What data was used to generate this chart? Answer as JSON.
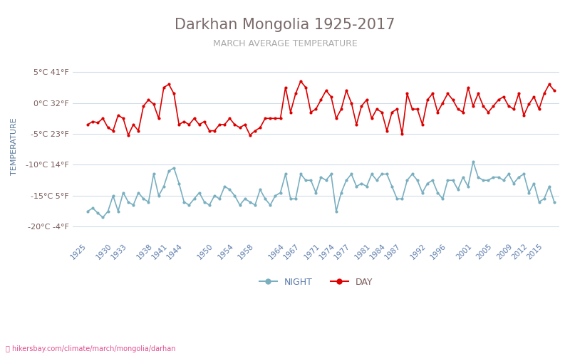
{
  "title": "Darkhan Mongolia 1925-2017",
  "subtitle": "MARCH AVERAGE TEMPERATURE",
  "ylabel": "TEMPERATURE",
  "background_color": "#ffffff",
  "title_color": "#7a6a6a",
  "subtitle_color": "#8a8a8a",
  "ylabel_color": "#5a7a9a",
  "grid_color": "#d0dce8",
  "footer_text": "hikersbay.com/climate/march/mongolia/darhan",
  "yticks_celsius": [
    5,
    0,
    -5,
    -10,
    -15,
    -20
  ],
  "yticks_labels": [
    "5°C 41°F",
    "0°C 32°F",
    "-5°C 23°F",
    "-10°C 14°F",
    "-15°C 5°F",
    "-20°C -4°F"
  ],
  "xtick_years": [
    1925,
    1930,
    1933,
    1938,
    1941,
    1944,
    1950,
    1954,
    1958,
    1964,
    1967,
    1971,
    1974,
    1977,
    1981,
    1984,
    1987,
    1992,
    1996,
    2001,
    2005,
    2009,
    2012,
    2015
  ],
  "day_color": "#dd0000",
  "night_color": "#7aafc0",
  "day_years": [
    1925,
    1926,
    1927,
    1928,
    1929,
    1930,
    1931,
    1932,
    1933,
    1934,
    1935,
    1936,
    1937,
    1938,
    1939,
    1940,
    1941,
    1942,
    1943,
    1944,
    1945,
    1946,
    1947,
    1948,
    1949,
    1950,
    1951,
    1952,
    1953,
    1954,
    1955,
    1956,
    1957,
    1958,
    1959,
    1960,
    1961,
    1962,
    1963,
    1964,
    1965,
    1966,
    1967,
    1968,
    1969,
    1970,
    1971,
    1972,
    1973,
    1974,
    1975,
    1976,
    1977,
    1978,
    1979,
    1980,
    1981,
    1982,
    1983,
    1984,
    1985,
    1986,
    1987,
    1988,
    1989,
    1990,
    1991,
    1992,
    1993,
    1994,
    1995,
    1996,
    1997,
    1998,
    1999,
    2000,
    2001,
    2002,
    2003,
    2004,
    2005,
    2006,
    2007,
    2008,
    2009,
    2010,
    2011,
    2012,
    2013,
    2014,
    2015,
    2016,
    2017
  ],
  "day_values": [
    -3.5,
    -3.0,
    -3.2,
    -2.5,
    -4.0,
    -4.5,
    -2.0,
    -2.5,
    -5.2,
    -3.5,
    -4.5,
    -0.5,
    0.5,
    -0.2,
    -2.5,
    2.5,
    3.0,
    1.5,
    -3.5,
    -3.0,
    -3.5,
    -2.5,
    -3.5,
    -3.0,
    -4.5,
    -4.5,
    -3.5,
    -3.5,
    -2.5,
    -3.5,
    -4.0,
    -3.5,
    -5.2,
    -4.5,
    -4.0,
    -2.5,
    -2.5,
    -2.5,
    -2.5,
    2.5,
    -1.5,
    1.5,
    3.5,
    2.5,
    -1.5,
    -1.0,
    0.5,
    2.0,
    1.0,
    -2.5,
    -1.0,
    2.0,
    0.0,
    -3.5,
    -0.5,
    0.5,
    -2.5,
    -1.0,
    -1.5,
    -4.5,
    -1.5,
    -1.0,
    -5.0,
    1.5,
    -1.0,
    -1.0,
    -3.5,
    0.5,
    1.5,
    -1.5,
    0.0,
    1.5,
    0.5,
    -1.0,
    -1.5,
    2.5,
    -0.5,
    1.5,
    -0.5,
    -1.5,
    -0.5,
    0.5,
    1.0,
    -0.5,
    -1.0,
    1.5,
    -2.0,
    -0.2,
    1.0,
    -1.0,
    1.5,
    3.0,
    2.0
  ],
  "night_years": [
    1925,
    1926,
    1927,
    1928,
    1929,
    1930,
    1931,
    1932,
    1933,
    1934,
    1935,
    1936,
    1937,
    1938,
    1939,
    1940,
    1941,
    1942,
    1943,
    1944,
    1945,
    1946,
    1947,
    1948,
    1949,
    1950,
    1951,
    1952,
    1953,
    1954,
    1955,
    1956,
    1957,
    1958,
    1959,
    1960,
    1961,
    1962,
    1963,
    1964,
    1965,
    1966,
    1967,
    1968,
    1969,
    1970,
    1971,
    1972,
    1973,
    1974,
    1975,
    1976,
    1977,
    1978,
    1979,
    1980,
    1981,
    1982,
    1983,
    1984,
    1985,
    1986,
    1987,
    1988,
    1989,
    1990,
    1991,
    1992,
    1993,
    1994,
    1995,
    1996,
    1997,
    1998,
    1999,
    2000,
    2001,
    2002,
    2003,
    2004,
    2005,
    2006,
    2007,
    2008,
    2009,
    2010,
    2011,
    2012,
    2013,
    2014,
    2015,
    2016,
    2017
  ],
  "night_values": [
    -17.5,
    -17.0,
    -17.8,
    -18.5,
    -17.5,
    -15.0,
    -17.5,
    -14.5,
    -16.0,
    -16.5,
    -14.5,
    -15.5,
    -16.0,
    -11.5,
    -15.0,
    -13.5,
    -11.0,
    -10.5,
    -13.0,
    -16.0,
    -16.5,
    -15.5,
    -14.5,
    -16.0,
    -16.5,
    -15.0,
    -15.5,
    -13.5,
    -14.0,
    -15.0,
    -16.5,
    -15.5,
    -16.0,
    -16.5,
    -14.0,
    -15.5,
    -16.5,
    -15.0,
    -14.5,
    -11.5,
    -15.5,
    -15.5,
    -11.5,
    -12.5,
    -12.5,
    -14.5,
    -12.0,
    -12.5,
    -11.5,
    -17.5,
    -14.5,
    -12.5,
    -11.5,
    -13.5,
    -13.0,
    -13.5,
    -11.5,
    -12.5,
    -11.5,
    -11.5,
    -13.5,
    -15.5,
    -15.5,
    -12.5,
    -11.5,
    -12.5,
    -14.5,
    -13.0,
    -12.5,
    -14.5,
    -15.5,
    -12.5,
    -12.5,
    -14.0,
    -12.0,
    -13.5,
    -9.5,
    -12.0,
    -12.5,
    -12.5,
    -12.0,
    -12.0,
    -12.5,
    -11.5,
    -13.0,
    -12.0,
    -11.5,
    -14.5,
    -13.0,
    -16.0,
    -15.5,
    -13.5,
    -16.0
  ]
}
